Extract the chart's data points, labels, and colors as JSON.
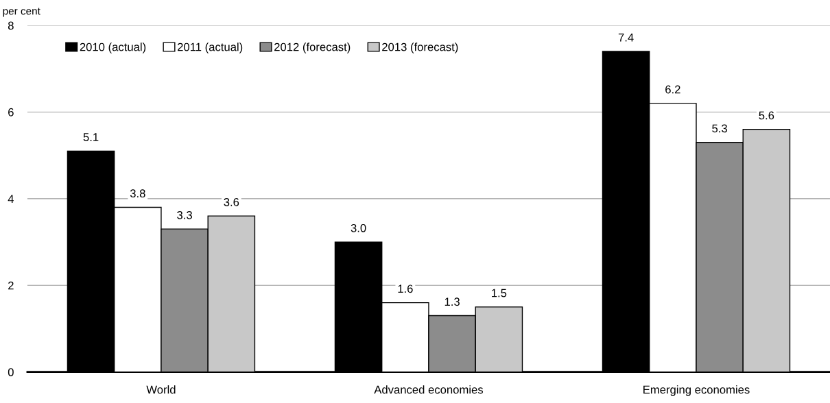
{
  "chart_data": {
    "type": "bar",
    "ylabel": "per cent",
    "categories": [
      "World",
      "Advanced economies",
      "Emerging economies"
    ],
    "series": [
      {
        "name": "2010 (actual)",
        "color": "#000000",
        "values": [
          5.1,
          3.0,
          7.4
        ],
        "value_labels": [
          "5.1",
          "3.0",
          "7.4"
        ]
      },
      {
        "name": "2011 (actual)",
        "color": "#ffffff",
        "values": [
          3.8,
          1.6,
          6.2
        ],
        "value_labels": [
          "3.8",
          "1.6",
          "6.2"
        ]
      },
      {
        "name": "2012 (forecast)",
        "color": "#8c8c8c",
        "values": [
          3.3,
          1.3,
          5.3
        ],
        "value_labels": [
          "3.3",
          "1.3",
          "5.3"
        ]
      },
      {
        "name": "2013 (forecast)",
        "color": "#c8c8c8",
        "values": [
          3.6,
          1.5,
          5.6
        ],
        "value_labels": [
          "3.6",
          "1.5",
          "5.6"
        ]
      }
    ],
    "ylim": [
      0,
      8
    ],
    "yticks": [
      0,
      2,
      4,
      6,
      8
    ],
    "grid": "y",
    "legend": "top left"
  }
}
